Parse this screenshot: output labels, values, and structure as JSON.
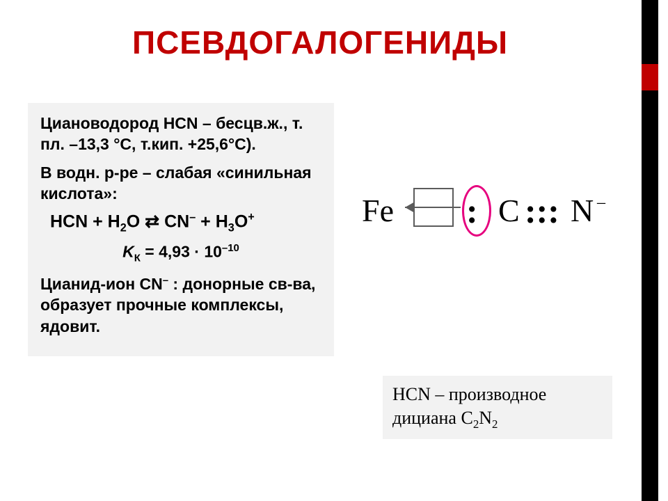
{
  "title": "ПСЕВДОГАЛОГЕНИДЫ",
  "left": {
    "p1a": "Циановодород HCN – бесцв.ж., т. пл. –13,3 °С, т.кип. +25,6°С).",
    "p2": " В водн. р-ре – слабая «синильная кислота»:",
    "eq_lhs": "HCN + H",
    "eq_h2o_sub": "2",
    "eq_o": "O ",
    "eq_arrows": "⇄",
    "eq_cn": " CN",
    "eq_cn_sup": "–",
    "eq_plus": " + H",
    "eq_h3o_sub": "3",
    "eq_o2": "O",
    "eq_o_sup": "+",
    "kk_prefix": "K",
    "kk_sub": "К",
    "kk_eq": " = 4,93 · 10",
    "kk_exp": "–10",
    "p3a": "Цианид-ион CN",
    "p3_sup": "–",
    "p3b": " : донорные св-ва, образует прочные комплексы, ядовит."
  },
  "diagram": {
    "fe": "Fe",
    "lonepair": ":",
    "carbon": "C",
    "triple": ":::",
    "nitrogen": "N",
    "minus": "–"
  },
  "note": {
    "line1a": "HCN – производное",
    "line2a": "дициана C",
    "line2_sub1": "2",
    "line2b": "N",
    "line2_sub2": "2"
  },
  "colors": {
    "accent_red": "#c00000",
    "ring_pink": "#e6007e",
    "panel_bg": "#f2f2f2",
    "box_gray": "#5b5b5b"
  }
}
